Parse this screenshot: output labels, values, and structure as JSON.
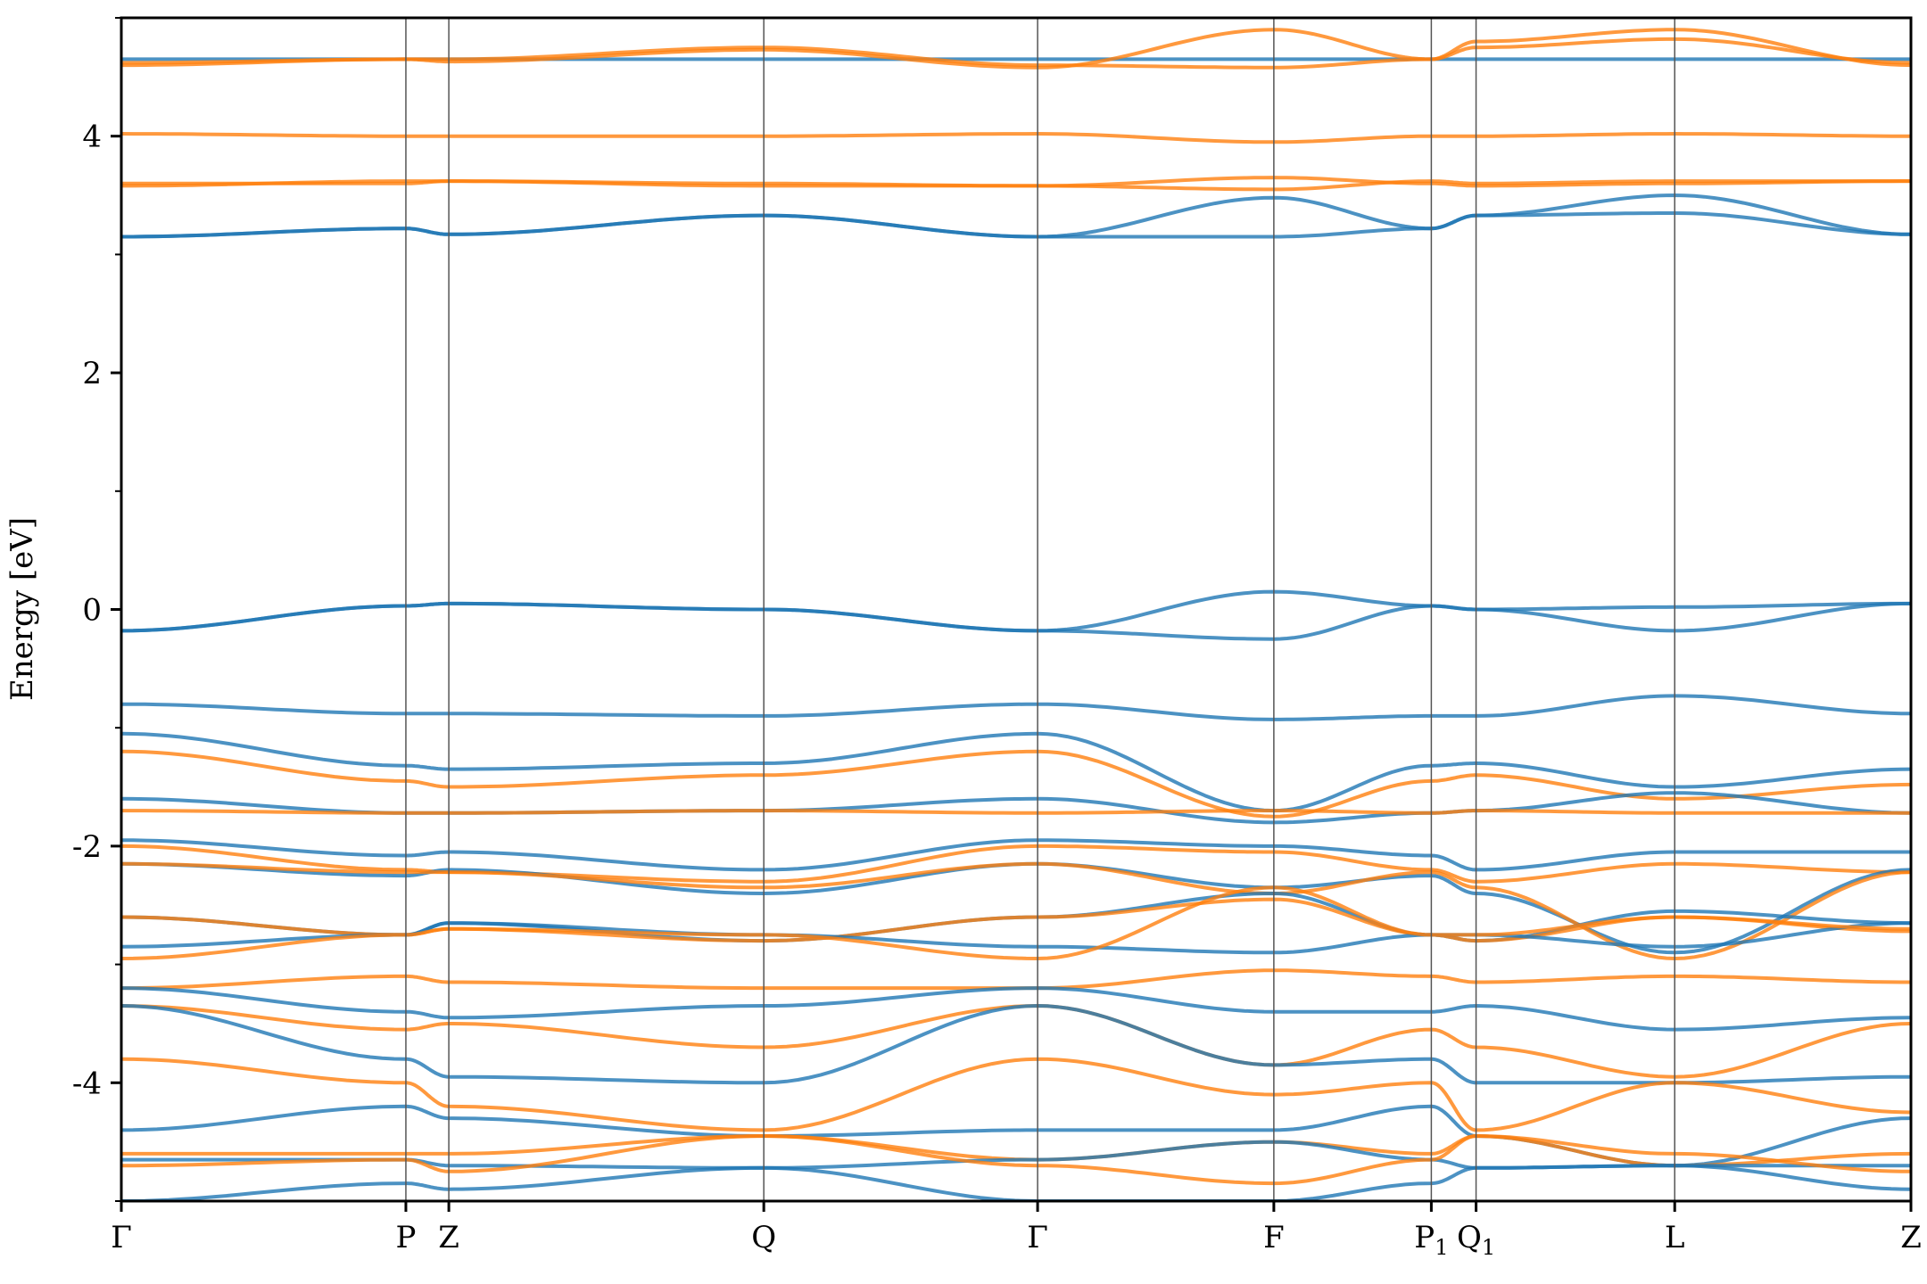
{
  "chart_data": {
    "type": "line",
    "title": "",
    "xlabel": "",
    "ylabel": "Energy [eV]",
    "ylim": [
      -5,
      5
    ],
    "xlim": [
      0,
      1
    ],
    "grid": false,
    "legend": "none",
    "y_ticks": [
      {
        "value": -4,
        "label": "-4"
      },
      {
        "value": -2,
        "label": "-2"
      },
      {
        "value": 0,
        "label": "0"
      },
      {
        "value": 2,
        "label": "2"
      },
      {
        "value": 4,
        "label": "4"
      }
    ],
    "y_minor_ticks": [
      -5,
      -3,
      -1,
      1,
      3,
      5
    ],
    "kpoints": [
      {
        "x": 0.0,
        "label": "Γ",
        "sub": ""
      },
      {
        "x": 0.159,
        "label": "P",
        "sub": ""
      },
      {
        "x": 0.183,
        "label": "Z",
        "sub": ""
      },
      {
        "x": 0.359,
        "label": "Q",
        "sub": ""
      },
      {
        "x": 0.512,
        "label": "Γ",
        "sub": ""
      },
      {
        "x": 0.644,
        "label": "F",
        "sub": ""
      },
      {
        "x": 0.732,
        "label": "P",
        "sub": "1"
      },
      {
        "x": 0.757,
        "label": "Q",
        "sub": "1"
      },
      {
        "x": 0.868,
        "label": "L",
        "sub": ""
      },
      {
        "x": 1.0,
        "label": "Z",
        "sub": ""
      }
    ],
    "colors": {
      "spin_a": "#1f77b4",
      "spin_b": "#ff7f0e",
      "kline": "#555555"
    },
    "series": [
      {
        "color_key": "spin_a",
        "values": [
          4.65,
          4.65,
          4.65,
          4.65,
          4.65,
          4.65,
          4.65,
          4.65,
          4.65,
          4.65
        ]
      },
      {
        "color_key": "spin_b",
        "values": [
          4.62,
          4.65,
          4.65,
          4.75,
          4.6,
          4.58,
          4.65,
          4.75,
          4.82,
          4.62
        ]
      },
      {
        "color_key": "spin_b",
        "values": [
          4.6,
          4.65,
          4.63,
          4.73,
          4.58,
          4.9,
          4.65,
          4.8,
          4.9,
          4.6
        ]
      },
      {
        "color_key": "spin_b",
        "values": [
          4.02,
          4.0,
          4.0,
          4.0,
          4.02,
          3.95,
          4.0,
          4.0,
          4.02,
          4.0
        ]
      },
      {
        "color_key": "spin_b",
        "values": [
          3.58,
          3.62,
          3.62,
          3.6,
          3.58,
          3.55,
          3.62,
          3.6,
          3.62,
          3.62
        ]
      },
      {
        "color_key": "spin_b",
        "values": [
          3.6,
          3.6,
          3.62,
          3.58,
          3.58,
          3.65,
          3.6,
          3.58,
          3.6,
          3.62
        ]
      },
      {
        "color_key": "spin_a",
        "values": [
          3.15,
          3.22,
          3.17,
          3.33,
          3.15,
          3.48,
          3.22,
          3.33,
          3.5,
          3.17
        ]
      },
      {
        "color_key": "spin_a",
        "values": [
          3.15,
          3.22,
          3.17,
          3.33,
          3.15,
          3.15,
          3.22,
          3.33,
          3.35,
          3.17
        ]
      },
      {
        "color_key": "spin_a",
        "values": [
          -0.18,
          0.03,
          0.05,
          0.0,
          -0.18,
          0.15,
          0.03,
          0.0,
          0.02,
          0.05
        ]
      },
      {
        "color_key": "spin_a",
        "values": [
          -0.18,
          0.03,
          0.05,
          0.0,
          -0.18,
          -0.25,
          0.03,
          0.0,
          -0.18,
          0.05
        ]
      },
      {
        "color_key": "spin_a",
        "values": [
          -0.8,
          -0.88,
          -0.88,
          -0.9,
          -0.8,
          -0.93,
          -0.9,
          -0.9,
          -0.73,
          -0.88
        ]
      },
      {
        "color_key": "spin_a",
        "values": [
          -1.05,
          -1.32,
          -1.35,
          -1.3,
          -1.05,
          -1.7,
          -1.32,
          -1.3,
          -1.5,
          -1.35
        ]
      },
      {
        "color_key": "spin_b",
        "values": [
          -1.2,
          -1.45,
          -1.5,
          -1.4,
          -1.2,
          -1.75,
          -1.45,
          -1.4,
          -1.6,
          -1.48
        ]
      },
      {
        "color_key": "spin_a",
        "values": [
          -1.6,
          -1.72,
          -1.72,
          -1.7,
          -1.6,
          -1.8,
          -1.72,
          -1.7,
          -1.55,
          -1.72
        ]
      },
      {
        "color_key": "spin_b",
        "values": [
          -1.7,
          -1.72,
          -1.72,
          -1.7,
          -1.72,
          -1.7,
          -1.72,
          -1.7,
          -1.72,
          -1.72
        ]
      },
      {
        "color_key": "spin_a",
        "values": [
          -1.95,
          -2.08,
          -2.05,
          -2.2,
          -1.95,
          -2.0,
          -2.08,
          -2.2,
          -2.05,
          -2.05
        ]
      },
      {
        "color_key": "spin_b",
        "values": [
          -2.0,
          -2.2,
          -2.22,
          -2.3,
          -2.0,
          -2.05,
          -2.2,
          -2.3,
          -2.15,
          -2.22
        ]
      },
      {
        "color_key": "spin_a",
        "values": [
          -2.15,
          -2.25,
          -2.2,
          -2.4,
          -2.15,
          -2.35,
          -2.25,
          -2.4,
          -2.9,
          -2.2
        ]
      },
      {
        "color_key": "spin_b",
        "values": [
          -2.15,
          -2.22,
          -2.22,
          -2.35,
          -2.15,
          -2.4,
          -2.22,
          -2.35,
          -2.95,
          -2.22
        ]
      },
      {
        "color_key": "spin_a",
        "values": [
          -2.6,
          -2.75,
          -2.65,
          -2.8,
          -2.6,
          -2.4,
          -2.75,
          -2.8,
          -2.55,
          -2.65
        ]
      },
      {
        "color_key": "spin_b",
        "values": [
          -2.6,
          -2.75,
          -2.7,
          -2.8,
          -2.6,
          -2.45,
          -2.75,
          -2.8,
          -2.6,
          -2.72
        ]
      },
      {
        "color_key": "spin_a",
        "values": [
          -2.85,
          -2.75,
          -2.65,
          -2.75,
          -2.85,
          -2.9,
          -2.75,
          -2.75,
          -2.85,
          -2.65
        ]
      },
      {
        "color_key": "spin_b",
        "values": [
          -2.95,
          -2.75,
          -2.7,
          -2.75,
          -2.95,
          -2.35,
          -2.75,
          -2.75,
          -2.6,
          -2.7
        ]
      },
      {
        "color_key": "spin_b",
        "values": [
          -3.2,
          -3.1,
          -3.15,
          -3.2,
          -3.2,
          -3.05,
          -3.1,
          -3.15,
          -3.1,
          -3.15
        ]
      },
      {
        "color_key": "spin_a",
        "values": [
          -3.2,
          -3.4,
          -3.45,
          -3.35,
          -3.2,
          -3.4,
          -3.4,
          -3.35,
          -3.55,
          -3.45
        ]
      },
      {
        "color_key": "spin_b",
        "values": [
          -3.35,
          -3.55,
          -3.5,
          -3.7,
          -3.35,
          -3.85,
          -3.55,
          -3.7,
          -3.95,
          -3.5
        ]
      },
      {
        "color_key": "spin_a",
        "values": [
          -3.35,
          -3.8,
          -3.95,
          -4.0,
          -3.35,
          -3.85,
          -3.8,
          -4.0,
          -4.0,
          -3.95
        ]
      },
      {
        "color_key": "spin_b",
        "values": [
          -3.8,
          -4.0,
          -4.2,
          -4.4,
          -3.8,
          -4.1,
          -4.0,
          -4.4,
          -4.0,
          -4.25
        ]
      },
      {
        "color_key": "spin_a",
        "values": [
          -4.4,
          -4.2,
          -4.3,
          -4.45,
          -4.4,
          -4.4,
          -4.2,
          -4.45,
          -4.7,
          -4.3
        ]
      },
      {
        "color_key": "spin_b",
        "values": [
          -4.6,
          -4.6,
          -4.6,
          -4.45,
          -4.65,
          -4.5,
          -4.6,
          -4.45,
          -4.7,
          -4.6
        ]
      },
      {
        "color_key": "spin_a",
        "values": [
          -4.65,
          -4.65,
          -4.7,
          -4.72,
          -4.65,
          -4.5,
          -4.65,
          -4.72,
          -4.7,
          -4.7
        ]
      },
      {
        "color_key": "spin_b",
        "values": [
          -4.7,
          -4.65,
          -4.75,
          -4.45,
          -4.7,
          -4.85,
          -4.65,
          -4.45,
          -4.6,
          -4.75
        ]
      },
      {
        "color_key": "spin_a",
        "values": [
          -5.0,
          -4.85,
          -4.9,
          -4.72,
          -5.0,
          -5.0,
          -4.85,
          -4.72,
          -4.7,
          -4.9
        ]
      }
    ]
  }
}
